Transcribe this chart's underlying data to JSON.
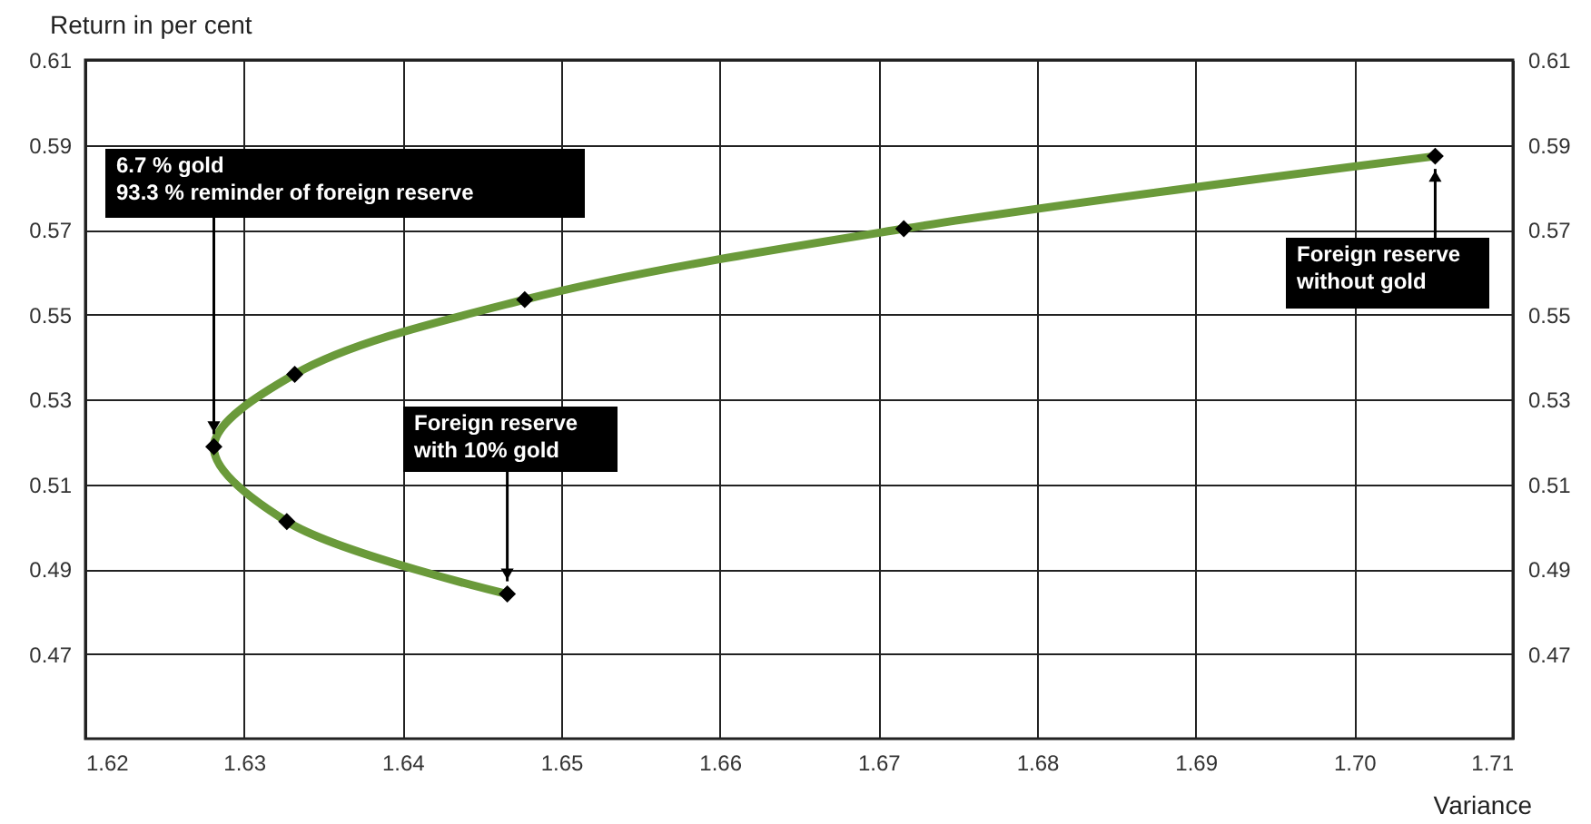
{
  "chart_data": {
    "type": "line",
    "xlabel": "Variance",
    "ylabel": "Return in per cent",
    "x": [
      1.6466,
      1.6327,
      1.6281,
      1.6332,
      1.6477,
      1.6716,
      1.7051
    ],
    "series": [
      {
        "color": "#6a9a3a",
        "values": [
          0.4841,
          0.5012,
          0.5188,
          0.5359,
          0.5535,
          0.5702,
          0.5873
        ]
      }
    ],
    "xlim": [
      1.62,
      1.71
    ],
    "xticks": [
      1.62,
      1.63,
      1.64,
      1.65,
      1.66,
      1.67,
      1.68,
      1.69,
      {
        "value": 1.7,
        "label": "1.70"
      },
      1.71
    ],
    "ylim": [
      0.45,
      0.61
    ],
    "yticks": [
      0.47,
      0.49,
      0.51,
      0.53,
      0.55,
      0.57,
      0.59,
      0.61
    ],
    "y2lim": [
      0.45,
      0.61
    ],
    "y2ticks": [
      0.47,
      0.49,
      0.51,
      0.53,
      0.55,
      0.57,
      0.59,
      0.61
    ],
    "grid": true,
    "marker": "diamond",
    "line_style": "solid",
    "annotations": [
      {
        "text": "6.7 % gold\n93.3 % reminder of foreign reserve",
        "x": 1.6281,
        "y": 0.5188
      },
      {
        "text": "Foreign reserve\nwith 10% gold",
        "x": 1.6466,
        "y": 0.4841
      },
      {
        "text": "Foreign reserve\nwithout gold",
        "x": 1.7051,
        "y": 0.5873
      }
    ]
  }
}
